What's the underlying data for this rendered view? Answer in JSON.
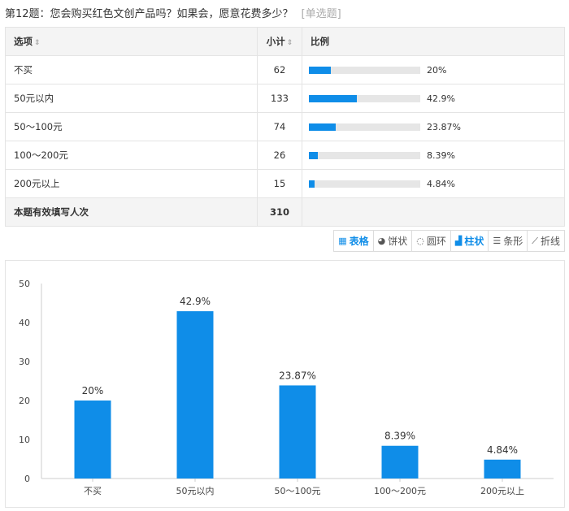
{
  "question": {
    "title": "第12题：您会购买红色文创产品吗？如果会，愿意花费多少？",
    "type_label": "[单选题]"
  },
  "table": {
    "headers": {
      "option": "选项",
      "count": "小计",
      "ratio": "比例"
    },
    "rows": [
      {
        "option": "不买",
        "count": "62",
        "percent": "20%",
        "fraction": 0.2
      },
      {
        "option": "50元以内",
        "count": "133",
        "percent": "42.9%",
        "fraction": 0.429
      },
      {
        "option": "50～100元",
        "count": "74",
        "percent": "23.87%",
        "fraction": 0.2387
      },
      {
        "option": "100～200元",
        "count": "26",
        "percent": "8.39%",
        "fraction": 0.0839
      },
      {
        "option": "200元以上",
        "count": "15",
        "percent": "4.84%",
        "fraction": 0.0484
      }
    ],
    "total": {
      "label": "本题有效填写人次",
      "count": "310"
    }
  },
  "toolbar": [
    {
      "label": "表格",
      "icon": "table-icon",
      "active": true
    },
    {
      "label": "饼状",
      "icon": "pie-icon",
      "active": false
    },
    {
      "label": "圆环",
      "icon": "ring-icon",
      "active": false
    },
    {
      "label": "柱状",
      "icon": "column-icon",
      "active": true
    },
    {
      "label": "条形",
      "icon": "bar-icon",
      "active": false
    },
    {
      "label": "折线",
      "icon": "line-icon",
      "active": false
    }
  ],
  "accent_color": "#0f8de8",
  "chart_data": {
    "type": "bar",
    "categories": [
      "不买",
      "50元以内",
      "50～100元",
      "100～200元",
      "200元以上"
    ],
    "values": [
      20,
      42.9,
      23.87,
      8.39,
      4.84
    ],
    "data_labels": [
      "20%",
      "42.9%",
      "23.87%",
      "8.39%",
      "4.84%"
    ],
    "ylim": [
      0,
      50
    ],
    "yticks": [
      0,
      10,
      20,
      30,
      40,
      50
    ],
    "color": "#0f8de8",
    "grid": false
  }
}
